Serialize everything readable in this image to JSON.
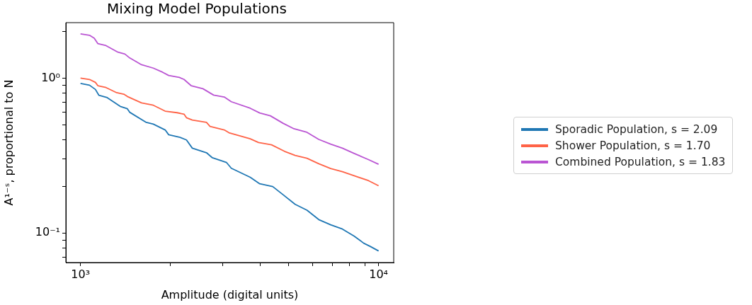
{
  "chart_data": {
    "type": "line",
    "title": "Mixing Model Populations",
    "xlabel": "Amplitude (digital units)",
    "ylabel": "A¹⁻ˢ, proportional to N",
    "log": "xy",
    "legend": "right",
    "xlim": [
      893,
      11240
    ],
    "ylim": [
      0.0645,
      2.28
    ],
    "xticks": [
      {
        "value": 1000,
        "label": "10³"
      },
      {
        "value": 2000,
        "label": null
      },
      {
        "value": 3000,
        "label": null
      },
      {
        "value": 4000,
        "label": null
      },
      {
        "value": 5000,
        "label": null
      },
      {
        "value": 6000,
        "label": null
      },
      {
        "value": 7000,
        "label": null
      },
      {
        "value": 8000,
        "label": null
      },
      {
        "value": 9000,
        "label": null
      },
      {
        "value": 10000,
        "label": "10⁴"
      }
    ],
    "yticks": [
      {
        "value": 0.07,
        "label": null
      },
      {
        "value": 0.08,
        "label": null
      },
      {
        "value": 0.09,
        "label": null
      },
      {
        "value": 0.1,
        "label": "10⁻¹"
      },
      {
        "value": 0.2,
        "label": null
      },
      {
        "value": 0.3,
        "label": null
      },
      {
        "value": 0.4,
        "label": null
      },
      {
        "value": 0.5,
        "label": null
      },
      {
        "value": 0.6,
        "label": null
      },
      {
        "value": 0.7,
        "label": null
      },
      {
        "value": 0.8,
        "label": null
      },
      {
        "value": 0.9,
        "label": null
      },
      {
        "value": 1,
        "label": "10⁰"
      },
      {
        "value": 2,
        "label": null
      }
    ],
    "series": [
      {
        "name": "Sporadic Population, s = 2.09",
        "color": "#1f77b4",
        "x": [
          1000,
          1072,
          1122,
          1153,
          1229,
          1359,
          1436,
          1462,
          1662,
          1755,
          1923,
          1976,
          2146,
          2267,
          2372,
          2646,
          2770,
          3091,
          3206,
          3710,
          3992,
          4414,
          4790,
          5250,
          5750,
          6301,
          6903,
          7563,
          8286,
          8913,
          9415,
          10000
        ],
        "values": [
          0.923,
          0.9,
          0.845,
          0.774,
          0.748,
          0.657,
          0.634,
          0.602,
          0.518,
          0.505,
          0.463,
          0.431,
          0.416,
          0.399,
          0.353,
          0.33,
          0.306,
          0.285,
          0.262,
          0.229,
          0.208,
          0.1995,
          0.1764,
          0.1533,
          0.1405,
          0.1221,
          0.113,
          0.1061,
          0.0955,
          0.086,
          0.0816,
          0.0766
        ]
      },
      {
        "name": "Shower Population, s = 1.70",
        "color": "#ff6347",
        "x": [
          1000,
          1072,
          1122,
          1143,
          1218,
          1322,
          1397,
          1436,
          1602,
          1755,
          1923,
          2107,
          2225,
          2267,
          2372,
          2646,
          2720,
          3035,
          3148,
          3710,
          3955,
          4374,
          4834,
          5250,
          5750,
          6301,
          6903,
          7563,
          8286,
          9245,
          10000
        ],
        "values": [
          1.0,
          0.98,
          0.939,
          0.894,
          0.869,
          0.805,
          0.788,
          0.761,
          0.692,
          0.668,
          0.612,
          0.598,
          0.585,
          0.555,
          0.536,
          0.518,
          0.488,
          0.463,
          0.444,
          0.406,
          0.384,
          0.371,
          0.337,
          0.317,
          0.304,
          0.28,
          0.261,
          0.249,
          0.234,
          0.218,
          0.202
        ]
      },
      {
        "name": "Combined Population, s = 1.83",
        "color": "#ba55d3",
        "x": [
          1000,
          1072,
          1112,
          1143,
          1218,
          1335,
          1409,
          1462,
          1602,
          1755,
          1888,
          1976,
          2146,
          2225,
          2350,
          2575,
          2796,
          3035,
          3206,
          3710,
          3992,
          4334,
          4790,
          5202,
          5750,
          6301,
          6903,
          7563,
          8286,
          9245,
          10000
        ],
        "values": [
          1.93,
          1.89,
          1.81,
          1.67,
          1.62,
          1.47,
          1.43,
          1.35,
          1.22,
          1.16,
          1.09,
          1.04,
          1.01,
          0.98,
          0.894,
          0.854,
          0.777,
          0.755,
          0.704,
          0.639,
          0.596,
          0.571,
          0.51,
          0.471,
          0.447,
          0.402,
          0.375,
          0.353,
          0.326,
          0.298,
          0.278
        ]
      }
    ]
  }
}
